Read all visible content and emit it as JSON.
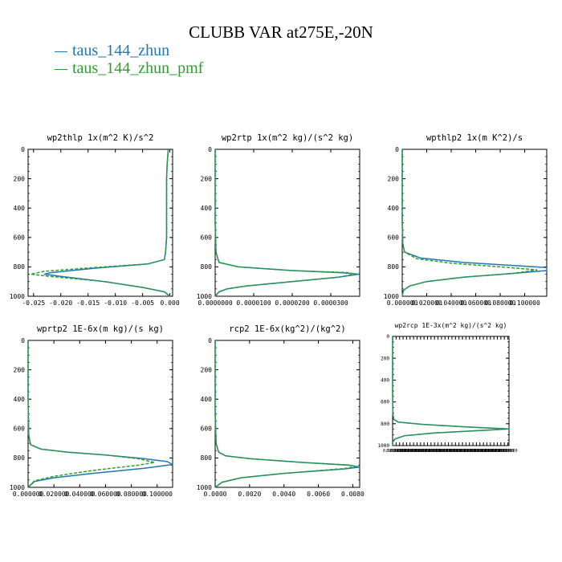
{
  "title": "CLUBB VAR at275E,-20N",
  "legend": [
    {
      "label": "taus_144_zhun",
      "color": "#1f77b4",
      "dash": "solid"
    },
    {
      "label": "taus_144_zhun_pmf",
      "color": "#2ca02c",
      "dash": "dashed"
    }
  ],
  "chart_data": [
    {
      "type": "line",
      "title": "wp2thlp  1x(m^2 K)/s^2",
      "ylim": [
        0,
        1000
      ],
      "yticks": [
        "0",
        "200",
        "400",
        "600",
        "800",
        "1000"
      ],
      "xlim": [
        -0.026,
        0.0005
      ],
      "xticks": [
        -0.025,
        -0.02,
        -0.015,
        -0.01,
        -0.005,
        0.0
      ],
      "xticklabels": [
        "-0.025",
        "-0.020",
        "-0.015",
        "-0.010",
        "-0.005",
        "0.000"
      ],
      "series": [
        {
          "name": "taus_144_zhun",
          "color": "#1f77b4",
          "dash": "solid",
          "points": [
            [
              -0.0003,
              0
            ],
            [
              -0.0005,
              100
            ],
            [
              -0.0006,
              200
            ],
            [
              -0.0006,
              400
            ],
            [
              -0.0006,
              600
            ],
            [
              -0.0008,
              700
            ],
            [
              -0.001,
              750
            ],
            [
              -0.004,
              780
            ],
            [
              -0.014,
              810
            ],
            [
              -0.022,
              840
            ],
            [
              -0.023,
              850
            ],
            [
              -0.02,
              865
            ],
            [
              -0.012,
              900
            ],
            [
              -0.005,
              940
            ],
            [
              -0.001,
              970
            ],
            [
              0,
              1000
            ]
          ]
        },
        {
          "name": "taus_144_zhun_pmf",
          "color": "#2ca02c",
          "dash": "dashed",
          "points": [
            [
              -0.0003,
              0
            ],
            [
              -0.0005,
              100
            ],
            [
              -0.0006,
              200
            ],
            [
              -0.0006,
              400
            ],
            [
              -0.0006,
              600
            ],
            [
              -0.0008,
              700
            ],
            [
              -0.001,
              750
            ],
            [
              -0.004,
              780
            ],
            [
              -0.014,
              805
            ],
            [
              -0.023,
              830
            ],
            [
              -0.0255,
              850
            ],
            [
              -0.022,
              865
            ],
            [
              -0.012,
              900
            ],
            [
              -0.005,
              940
            ],
            [
              -0.001,
              970
            ],
            [
              0,
              1000
            ]
          ]
        }
      ]
    },
    {
      "type": "line",
      "title": "wp2rtp  1x(m^2 kg)/(s^2 kg)",
      "ylim": [
        0,
        1000
      ],
      "yticks": [
        "0",
        "200",
        "400",
        "600",
        "800",
        "1000"
      ],
      "xlim": [
        0,
        3.75e-05
      ],
      "xticks": [
        0,
        1e-05,
        2e-05,
        3e-05
      ],
      "xticklabels": [
        "0.0000000",
        "0.0000100",
        "0.0000200",
        "0.0000300"
      ],
      "series": [
        {
          "name": "taus_144_zhun",
          "color": "#1f77b4",
          "dash": "solid",
          "points": [
            [
              0,
              0
            ],
            [
              0,
              500
            ],
            [
              2e-07,
              700
            ],
            [
              1e-06,
              770
            ],
            [
              6e-06,
              800
            ],
            [
              2e-05,
              825
            ],
            [
              3.3e-05,
              840
            ],
            [
              3.73e-05,
              850
            ],
            [
              3.2e-05,
              870
            ],
            [
              2e-05,
              900
            ],
            [
              8e-06,
              930
            ],
            [
              3e-06,
              950
            ],
            [
              1e-06,
              970
            ],
            [
              0,
              1000
            ]
          ]
        },
        {
          "name": "taus_144_zhun_pmf",
          "color": "#2ca02c",
          "dash": "dashed",
          "points": [
            [
              0,
              0
            ],
            [
              0,
              500
            ],
            [
              2e-07,
              700
            ],
            [
              1e-06,
              770
            ],
            [
              6e-06,
              800
            ],
            [
              2e-05,
              825
            ],
            [
              3.4e-05,
              838
            ],
            [
              3.65e-05,
              848
            ],
            [
              3.2e-05,
              870
            ],
            [
              2e-05,
              900
            ],
            [
              8e-06,
              930
            ],
            [
              3e-06,
              950
            ],
            [
              1e-06,
              970
            ],
            [
              0,
              1000
            ]
          ]
        }
      ]
    },
    {
      "type": "line",
      "title": "wpthlp2  1x(m K^2)/s",
      "ylim": [
        0,
        1000
      ],
      "yticks": [
        "0",
        "200",
        "400",
        "600",
        "800",
        "1000"
      ],
      "xlim": [
        0,
        0.118
      ],
      "xticks": [
        0,
        0.02,
        0.04,
        0.06,
        0.08,
        0.1
      ],
      "xticklabels": [
        "0.000000",
        "0.020000",
        "0.040000",
        "0.060000",
        "0.080000",
        "0.100000"
      ],
      "series": [
        {
          "name": "taus_144_zhun",
          "color": "#1f77b4",
          "dash": "solid",
          "points": [
            [
              0,
              0
            ],
            [
              0,
              500
            ],
            [
              0.0005,
              650
            ],
            [
              0.002,
              700
            ],
            [
              0.015,
              740
            ],
            [
              0.05,
              770
            ],
            [
              0.09,
              790
            ],
            [
              0.118,
              805
            ],
            [
              0.118,
              825
            ],
            [
              0.09,
              845
            ],
            [
              0.05,
              870
            ],
            [
              0.02,
              900
            ],
            [
              0.006,
              930
            ],
            [
              0.001,
              960
            ],
            [
              0,
              1000
            ]
          ]
        },
        {
          "name": "taus_144_zhun_pmf",
          "color": "#2ca02c",
          "dash": "dashed",
          "points": [
            [
              0,
              0
            ],
            [
              0,
              500
            ],
            [
              0.0005,
              650
            ],
            [
              0.002,
              700
            ],
            [
              0.012,
              745
            ],
            [
              0.04,
              775
            ],
            [
              0.08,
              800
            ],
            [
              0.11,
              820
            ],
            [
              0.09,
              845
            ],
            [
              0.05,
              870
            ],
            [
              0.02,
              900
            ],
            [
              0.006,
              930
            ],
            [
              0.001,
              960
            ],
            [
              0,
              1000
            ]
          ]
        }
      ]
    },
    {
      "type": "line",
      "title": "wprtp2  1E-6x(m kg)/(s kg)",
      "ylim": [
        0,
        1000
      ],
      "yticks": [
        "0",
        "200",
        "400",
        "600",
        "800",
        "1000"
      ],
      "xlim": [
        0,
        0.112
      ],
      "xticks": [
        0,
        0.02,
        0.04,
        0.06,
        0.08,
        0.1
      ],
      "xticklabels": [
        "0.000000",
        "0.020000",
        "0.040000",
        "0.060000",
        "0.080000",
        "0.100000"
      ],
      "series": [
        {
          "name": "taus_144_zhun",
          "color": "#1f77b4",
          "dash": "solid",
          "points": [
            [
              0,
              0
            ],
            [
              0,
              400
            ],
            [
              0.0005,
              650
            ],
            [
              0.002,
              710
            ],
            [
              0.01,
              740
            ],
            [
              0.03,
              760
            ],
            [
              0.06,
              780
            ],
            [
              0.09,
              805
            ],
            [
              0.108,
              825
            ],
            [
              0.112,
              845
            ],
            [
              0.09,
              870
            ],
            [
              0.05,
              905
            ],
            [
              0.02,
              935
            ],
            [
              0.005,
              960
            ],
            [
              0,
              1000
            ]
          ]
        },
        {
          "name": "taus_144_zhun_pmf",
          "color": "#2ca02c",
          "dash": "dashed",
          "points": [
            [
              0,
              0
            ],
            [
              0,
              400
            ],
            [
              0.0005,
              650
            ],
            [
              0.002,
              710
            ],
            [
              0.01,
              740
            ],
            [
              0.03,
              760
            ],
            [
              0.06,
              780
            ],
            [
              0.085,
              805
            ],
            [
              0.098,
              830
            ],
            [
              0.085,
              850
            ],
            [
              0.05,
              885
            ],
            [
              0.02,
              925
            ],
            [
              0.005,
              955
            ],
            [
              0,
              1000
            ]
          ]
        }
      ]
    },
    {
      "type": "line",
      "title": "rcp2  1E-6x(kg^2)/(kg^2)",
      "ylim": [
        0,
        1000
      ],
      "yticks": [
        "0",
        "200",
        "400",
        "600",
        "800",
        "1000"
      ],
      "xlim": [
        0,
        0.0084
      ],
      "xticks": [
        0,
        0.002,
        0.004,
        0.006,
        0.008
      ],
      "xticklabels": [
        "0.0000",
        "0.0020",
        "0.0040",
        "0.0060",
        "0.0080"
      ],
      "series": [
        {
          "name": "taus_144_zhun",
          "color": "#1f77b4",
          "dash": "solid",
          "points": [
            [
              0,
              0
            ],
            [
              0,
              500
            ],
            [
              5e-05,
              700
            ],
            [
              0.0002,
              760
            ],
            [
              0.0006,
              785
            ],
            [
              0.002,
              805
            ],
            [
              0.005,
              830
            ],
            [
              0.0078,
              850
            ],
            [
              0.0084,
              862
            ],
            [
              0.0075,
              875
            ],
            [
              0.004,
              905
            ],
            [
              0.0015,
              935
            ],
            [
              0.0004,
              965
            ],
            [
              0,
              1000
            ]
          ]
        },
        {
          "name": "taus_144_zhun_pmf",
          "color": "#2ca02c",
          "dash": "dashed",
          "points": [
            [
              0,
              0
            ],
            [
              0,
              500
            ],
            [
              5e-05,
              700
            ],
            [
              0.0002,
              760
            ],
            [
              0.0006,
              785
            ],
            [
              0.002,
              805
            ],
            [
              0.005,
              830
            ],
            [
              0.0078,
              848
            ],
            [
              0.0082,
              858
            ],
            [
              0.0075,
              872
            ],
            [
              0.004,
              905
            ],
            [
              0.0015,
              935
            ],
            [
              0.0004,
              965
            ],
            [
              0,
              1000
            ]
          ]
        }
      ]
    },
    {
      "type": "line",
      "title": "wp2rcp  1E-3x(m^2 kg)/(s^2 kg)",
      "ylim": [
        0,
        1000
      ],
      "yticks": [
        "0",
        "200",
        "400",
        "600",
        "800",
        "1000"
      ],
      "xlim": [
        0,
        1
      ],
      "xticks": [
        0,
        0.03,
        0.06,
        0.09,
        0.12,
        0.15,
        0.18,
        0.21,
        0.24,
        0.27,
        0.3,
        0.33,
        0.36,
        0.39,
        0.42,
        0.45,
        0.48,
        0.51,
        0.54,
        0.57,
        0.6,
        0.63,
        0.66,
        0.69,
        0.72,
        0.75,
        0.78,
        0.81,
        0.84,
        0.87,
        0.9,
        0.93,
        0.96,
        0.99
      ],
      "xticklabels": [
        "0.000000",
        "0.000000",
        "0.000000",
        "0.000000",
        "0.000000",
        "0.000000",
        "0.000000",
        "0.000000",
        "0.000000",
        "0.000000",
        "0.000000",
        "0.000000",
        "0.000000",
        "0.000000",
        "0.000000",
        "0.000000",
        "0.000000",
        "0.000000",
        "0.000000",
        "0.000000",
        "0.000000",
        "0.000000",
        "0.000000",
        "0.000000",
        "0.000000",
        "0.000000",
        "0.000000",
        "0.000000",
        "0.000000",
        "0.000000",
        "0.000000",
        "0.000000",
        "0.000000",
        "0.000000"
      ],
      "series": [
        {
          "name": "taus_144_zhun",
          "color": "#1f77b4",
          "dash": "solid",
          "points": [
            [
              0,
              0
            ],
            [
              0,
              500
            ],
            [
              0.002,
              700
            ],
            [
              0.01,
              760
            ],
            [
              0.05,
              785
            ],
            [
              0.25,
              805
            ],
            [
              0.65,
              830
            ],
            [
              1.0,
              848
            ],
            [
              0.75,
              862
            ],
            [
              0.35,
              885
            ],
            [
              0.1,
              910
            ],
            [
              0.02,
              940
            ],
            [
              0,
              970
            ],
            [
              0,
              1000
            ]
          ]
        },
        {
          "name": "taus_144_zhun_pmf",
          "color": "#2ca02c",
          "dash": "dashed",
          "points": [
            [
              0,
              0
            ],
            [
              0,
              500
            ],
            [
              0.002,
              700
            ],
            [
              0.01,
              760
            ],
            [
              0.05,
              785
            ],
            [
              0.25,
              805
            ],
            [
              0.65,
              830
            ],
            [
              1.0,
              848
            ],
            [
              0.75,
              862
            ],
            [
              0.35,
              885
            ],
            [
              0.1,
              910
            ],
            [
              0.02,
              940
            ],
            [
              0,
              970
            ],
            [
              0,
              1000
            ]
          ]
        }
      ]
    }
  ]
}
